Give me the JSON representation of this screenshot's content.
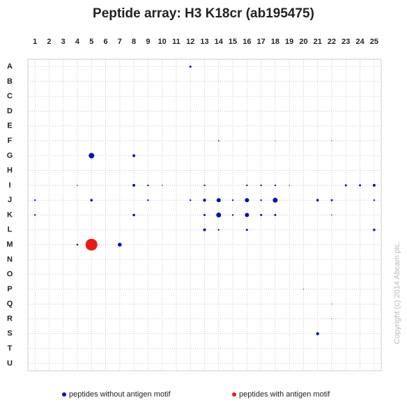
{
  "chart_data": {
    "type": "bubble",
    "title": "Peptide array: H3 K18cr (ab195475)",
    "watermark": "Copyright (c) 2014 Abcam plc.",
    "xlim": [
      0.5,
      25.5
    ],
    "xticks": [
      1,
      2,
      3,
      4,
      5,
      6,
      7,
      8,
      9,
      10,
      11,
      12,
      13,
      14,
      15,
      16,
      17,
      18,
      19,
      20,
      21,
      22,
      23,
      24,
      25
    ],
    "rows": [
      "A",
      "B",
      "C",
      "D",
      "E",
      "F",
      "G",
      "H",
      "I",
      "J",
      "K",
      "L",
      "M",
      "N",
      "O",
      "P",
      "Q",
      "R",
      "S",
      "T",
      "U"
    ],
    "grid": true,
    "legend": "bottom",
    "series": [
      {
        "name": "peptides without antigen motif",
        "color": "#0a14a8",
        "x": [
          12,
          14,
          18,
          22,
          5,
          8,
          4,
          8,
          9,
          10,
          13,
          16,
          17,
          18,
          19,
          23,
          24,
          25,
          1,
          5,
          9,
          12,
          13,
          14,
          15,
          16,
          17,
          18,
          21,
          22,
          25,
          1,
          8,
          13,
          14,
          15,
          16,
          17,
          18,
          22,
          13,
          14,
          16,
          25,
          4,
          7,
          20,
          22,
          22,
          21
        ],
        "y": [
          "A",
          "F",
          "F",
          "F",
          "G",
          "G",
          "I",
          "I",
          "I",
          "I",
          "I",
          "I",
          "I",
          "I",
          "I",
          "I",
          "I",
          "I",
          "J",
          "J",
          "J",
          "J",
          "J",
          "J",
          "J",
          "J",
          "J",
          "J",
          "J",
          "J",
          "J",
          "K",
          "K",
          "K",
          "K",
          "K",
          "K",
          "K",
          "K",
          "K",
          "L",
          "L",
          "L",
          "L",
          "M",
          "M",
          "P",
          "Q",
          "R",
          "S"
        ],
        "sizes": [
          1.5,
          1,
          0.6,
          0.6,
          4,
          2,
          0.8,
          2,
          1.2,
          0.8,
          1.2,
          1.2,
          1.2,
          1.2,
          0.8,
          1.5,
          1.5,
          2,
          1.2,
          1.8,
          1.2,
          1.2,
          2.2,
          3,
          1.2,
          3,
          1.2,
          3.5,
          1.8,
          1.5,
          1.2,
          1.2,
          1.8,
          1.5,
          3.5,
          1.2,
          3,
          1.5,
          1.5,
          0.8,
          2,
          1.2,
          1.5,
          1.8,
          1.2,
          2.8,
          0.6,
          0.6,
          0.6,
          2.2
        ]
      },
      {
        "name": "peptides with antigen motif",
        "color": "#e51b1b",
        "x": [
          5
        ],
        "y": [
          "M"
        ],
        "sizes": [
          8.5
        ]
      }
    ]
  }
}
